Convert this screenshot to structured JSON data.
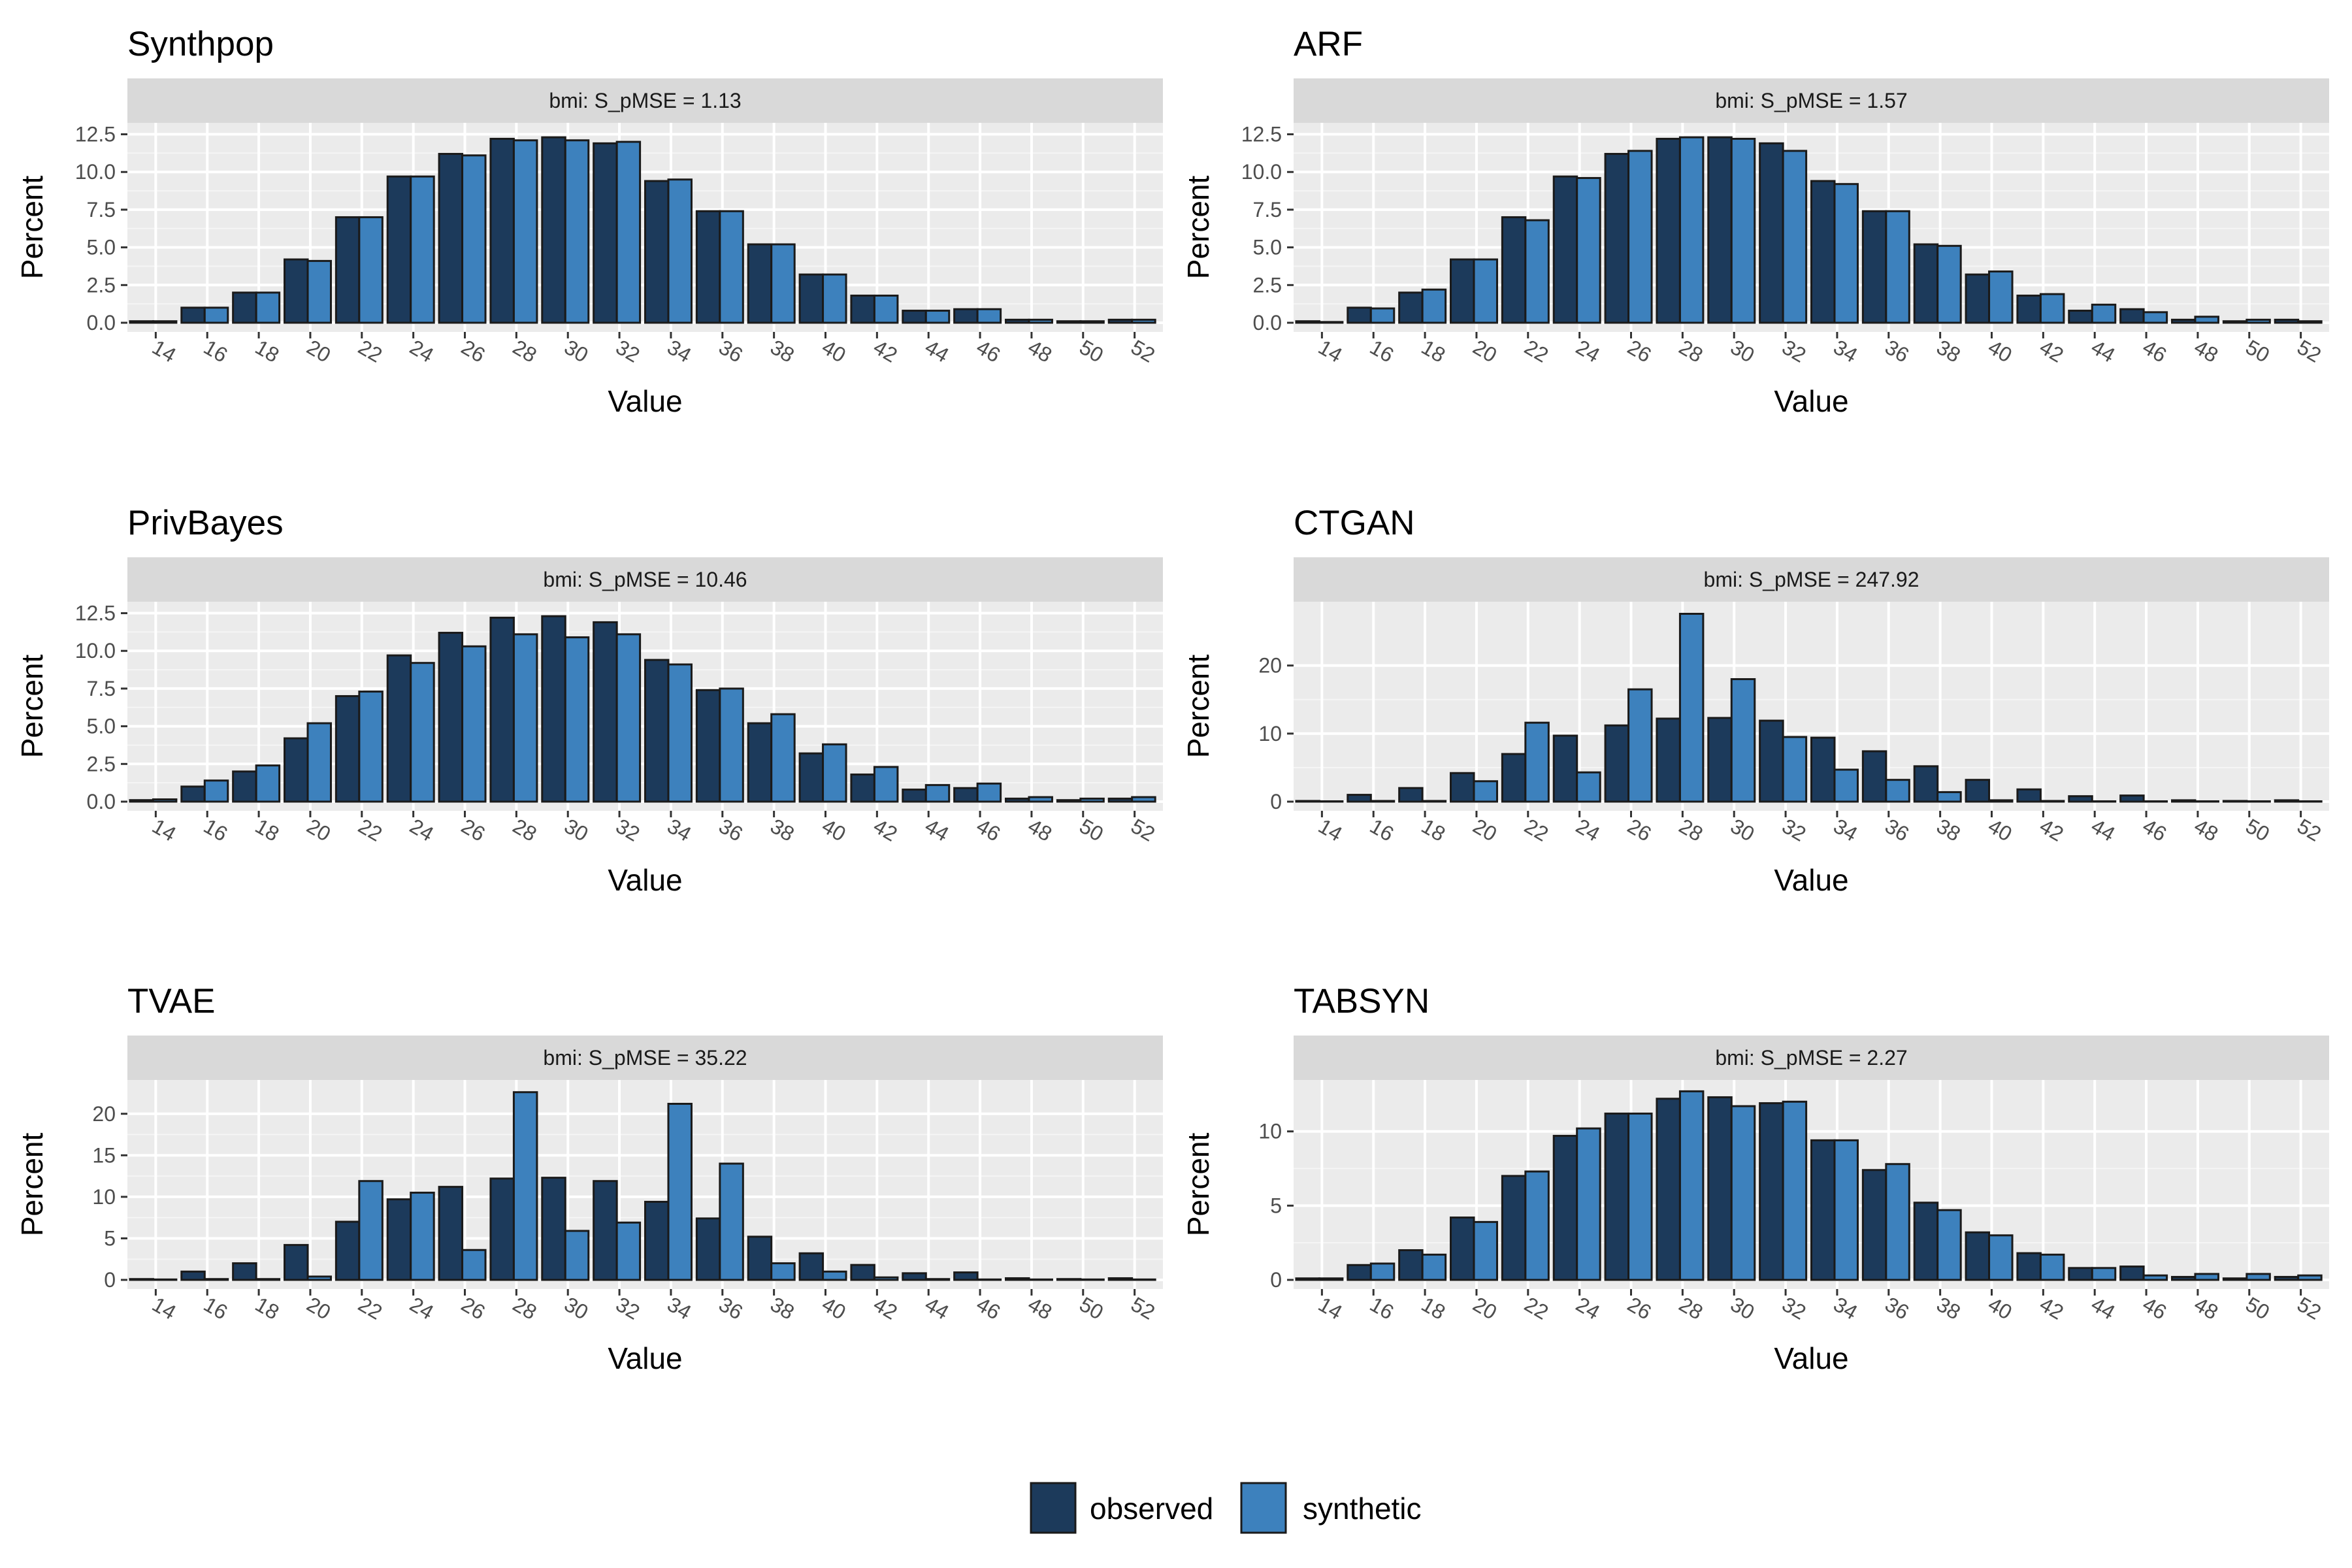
{
  "legend": {
    "observed": {
      "label": "observed",
      "color": "#1c3a5b"
    },
    "synthetic": {
      "label": "synthetic",
      "color": "#3d81bd"
    }
  },
  "chart_data": [
    {
      "type": "bar",
      "title": "Synthpop",
      "strip": "bmi: S_pMSE = 1.13",
      "xlabel": "Value",
      "ylabel": "Percent",
      "x_tick_labels": [
        "14",
        "16",
        "18",
        "20",
        "22",
        "24",
        "26",
        "28",
        "30",
        "32",
        "34",
        "36",
        "38",
        "40",
        "42",
        "44",
        "46",
        "48",
        "50",
        "52"
      ],
      "y_ticks": [
        0,
        2.5,
        5,
        7.5,
        10,
        12.5
      ],
      "y_tick_labels": [
        "0.0",
        "2.5",
        "5.0",
        "7.5",
        "10.0",
        "12.5"
      ],
      "ylim": [
        0,
        13.0
      ],
      "series": [
        {
          "name": "observed",
          "values": [
            0.1,
            1.0,
            2.0,
            4.2,
            7.0,
            9.7,
            11.2,
            12.2,
            12.3,
            11.9,
            9.4,
            7.4,
            5.2,
            3.2,
            1.8,
            0.8,
            0.9,
            0.2,
            0.1,
            0.2
          ]
        },
        {
          "name": "synthetic",
          "values": [
            0.1,
            1.0,
            2.0,
            4.1,
            7.0,
            9.7,
            11.1,
            12.1,
            12.1,
            12.0,
            9.5,
            7.4,
            5.2,
            3.2,
            1.8,
            0.8,
            0.9,
            0.2,
            0.1,
            0.2
          ]
        }
      ]
    },
    {
      "type": "bar",
      "title": "ARF",
      "strip": "bmi: S_pMSE = 1.57",
      "xlabel": "Value",
      "ylabel": "Percent",
      "x_tick_labels": [
        "14",
        "16",
        "18",
        "20",
        "22",
        "24",
        "26",
        "28",
        "30",
        "32",
        "34",
        "36",
        "38",
        "40",
        "42",
        "44",
        "46",
        "48",
        "50",
        "52"
      ],
      "y_ticks": [
        0,
        2.5,
        5,
        7.5,
        10,
        12.5
      ],
      "y_tick_labels": [
        "0.0",
        "2.5",
        "5.0",
        "7.5",
        "10.0",
        "12.5"
      ],
      "ylim": [
        0,
        13.0
      ],
      "series": [
        {
          "name": "observed",
          "values": [
            0.1,
            1.0,
            2.0,
            4.2,
            7.0,
            9.7,
            11.2,
            12.2,
            12.3,
            11.9,
            9.4,
            7.4,
            5.2,
            3.2,
            1.8,
            0.8,
            0.9,
            0.2,
            0.1,
            0.2
          ]
        },
        {
          "name": "synthetic",
          "values": [
            0.05,
            0.95,
            2.2,
            4.2,
            6.8,
            9.6,
            11.4,
            12.3,
            12.2,
            11.4,
            9.2,
            7.4,
            5.1,
            3.4,
            1.9,
            1.2,
            0.7,
            0.4,
            0.2,
            0.1
          ]
        }
      ]
    },
    {
      "type": "bar",
      "title": "PrivBayes",
      "strip": "bmi: S_pMSE = 10.46",
      "xlabel": "Value",
      "ylabel": "Percent",
      "x_tick_labels": [
        "14",
        "16",
        "18",
        "20",
        "22",
        "24",
        "26",
        "28",
        "30",
        "32",
        "34",
        "36",
        "38",
        "40",
        "42",
        "44",
        "46",
        "48",
        "50",
        "52"
      ],
      "y_ticks": [
        0,
        2.5,
        5,
        7.5,
        10,
        12.5
      ],
      "y_tick_labels": [
        "0.0",
        "2.5",
        "5.0",
        "7.5",
        "10.0",
        "12.5"
      ],
      "ylim": [
        0,
        13.0
      ],
      "series": [
        {
          "name": "observed",
          "values": [
            0.1,
            1.0,
            2.0,
            4.2,
            7.0,
            9.7,
            11.2,
            12.2,
            12.3,
            11.9,
            9.4,
            7.4,
            5.2,
            3.2,
            1.8,
            0.8,
            0.9,
            0.2,
            0.1,
            0.2
          ]
        },
        {
          "name": "synthetic",
          "values": [
            0.15,
            1.4,
            2.4,
            5.2,
            7.3,
            9.2,
            10.3,
            11.1,
            10.9,
            11.1,
            9.1,
            7.5,
            5.8,
            3.8,
            2.3,
            1.1,
            1.2,
            0.3,
            0.2,
            0.3
          ]
        }
      ]
    },
    {
      "type": "bar",
      "title": "CTGAN",
      "strip": "bmi: S_pMSE = 247.92",
      "xlabel": "Value",
      "ylabel": "Percent",
      "x_tick_labels": [
        "14",
        "16",
        "18",
        "20",
        "22",
        "24",
        "26",
        "28",
        "30",
        "32",
        "34",
        "36",
        "38",
        "40",
        "42",
        "44",
        "46",
        "48",
        "50",
        "52"
      ],
      "y_ticks": [
        0,
        10,
        20
      ],
      "y_tick_labels": [
        "0",
        "10",
        "20"
      ],
      "ylim": [
        0,
        28.8
      ],
      "series": [
        {
          "name": "observed",
          "values": [
            0.1,
            1.0,
            2.0,
            4.2,
            7.0,
            9.7,
            11.2,
            12.2,
            12.3,
            11.9,
            9.4,
            7.4,
            5.2,
            3.2,
            1.8,
            0.8,
            0.9,
            0.2,
            0.1,
            0.2
          ]
        },
        {
          "name": "synthetic",
          "values": [
            0.05,
            0.1,
            0.1,
            3.0,
            11.6,
            4.3,
            16.5,
            27.6,
            18.0,
            9.5,
            4.7,
            3.2,
            1.4,
            0.2,
            0.1,
            0.05,
            0.05,
            0.05,
            0.05,
            0.05
          ]
        }
      ]
    },
    {
      "type": "bar",
      "title": "TVAE",
      "strip": "bmi: S_pMSE = 35.22",
      "xlabel": "Value",
      "ylabel": "Percent",
      "x_tick_labels": [
        "14",
        "16",
        "18",
        "20",
        "22",
        "24",
        "26",
        "28",
        "30",
        "32",
        "34",
        "36",
        "38",
        "40",
        "42",
        "44",
        "46",
        "48",
        "50",
        "52"
      ],
      "y_ticks": [
        0,
        5,
        10,
        15,
        20
      ],
      "y_tick_labels": [
        "0",
        "5",
        "10",
        "15",
        "20"
      ],
      "ylim": [
        0,
        23.6
      ],
      "series": [
        {
          "name": "observed",
          "values": [
            0.1,
            1.0,
            2.0,
            4.2,
            7.0,
            9.7,
            11.2,
            12.2,
            12.3,
            11.9,
            9.4,
            7.4,
            5.2,
            3.2,
            1.8,
            0.8,
            0.9,
            0.2,
            0.1,
            0.2
          ]
        },
        {
          "name": "synthetic",
          "values": [
            0.05,
            0.1,
            0.1,
            0.4,
            11.9,
            10.5,
            3.6,
            22.6,
            5.9,
            6.9,
            21.2,
            14.0,
            2.0,
            1.0,
            0.3,
            0.1,
            0.05,
            0.05,
            0.05,
            0.05
          ]
        }
      ]
    },
    {
      "type": "bar",
      "title": "TABSYN",
      "strip": "bmi: S_pMSE = 2.27",
      "xlabel": "Value",
      "ylabel": "Percent",
      "x_tick_labels": [
        "14",
        "16",
        "18",
        "20",
        "22",
        "24",
        "26",
        "28",
        "30",
        "32",
        "34",
        "36",
        "38",
        "40",
        "42",
        "44",
        "46",
        "48",
        "50",
        "52"
      ],
      "y_ticks": [
        0,
        5,
        10
      ],
      "y_tick_labels": [
        "0",
        "5",
        "10"
      ],
      "ylim": [
        0,
        13.2
      ],
      "series": [
        {
          "name": "observed",
          "values": [
            0.1,
            1.0,
            2.0,
            4.2,
            7.0,
            9.7,
            11.2,
            12.2,
            12.3,
            11.9,
            9.4,
            7.4,
            5.2,
            3.2,
            1.8,
            0.8,
            0.9,
            0.2,
            0.1,
            0.2
          ]
        },
        {
          "name": "synthetic",
          "values": [
            0.1,
            1.1,
            1.7,
            3.9,
            7.3,
            10.2,
            11.2,
            12.7,
            11.7,
            12.0,
            9.4,
            7.8,
            4.7,
            3.0,
            1.7,
            0.8,
            0.3,
            0.4,
            0.4,
            0.3
          ]
        }
      ]
    }
  ]
}
